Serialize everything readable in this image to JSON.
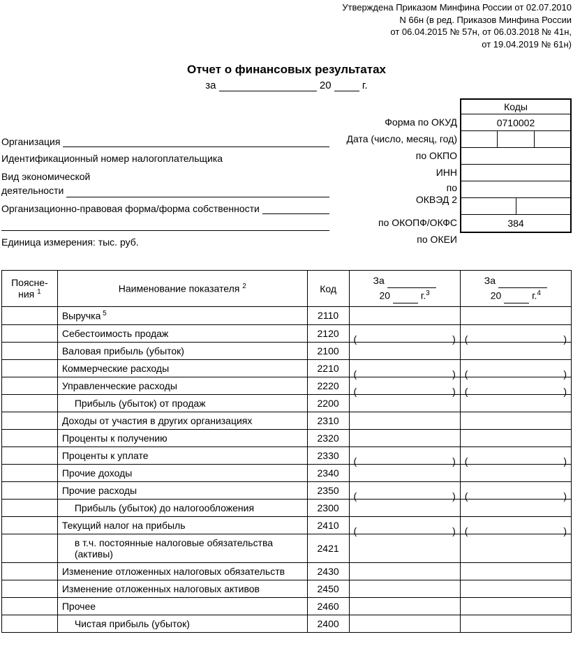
{
  "approval": {
    "line1": "Утверждена Приказом Минфина России от 02.07.2010",
    "line2": "N 66н (в ред. Приказов Минфина России",
    "line3": "от 06.04.2015 № 57н, от 06.03.2018 № 41н,",
    "line4": "от 19.04.2019 № 61н)"
  },
  "title": "Отчет о финансовых результатах",
  "period": {
    "za": "за",
    "twenty": "20",
    "g": "г."
  },
  "codes_header": "Коды",
  "labels": {
    "okud": "Форма по ОКУД",
    "date": "Дата (число, месяц, год)",
    "okpo": "по ОКПО",
    "inn": "ИНН",
    "po": "по",
    "okved": "ОКВЭД 2",
    "okopf": "по ОКОПФ/ОКФС",
    "okei": "по ОКЕИ"
  },
  "code_values": {
    "okud": "0710002",
    "okei": "384"
  },
  "left": {
    "org": "Организация",
    "inn": "Идентификационный номер налогоплательщика",
    "activity1": "Вид экономической",
    "activity2": "деятельности",
    "opf": "Организационно-правовая форма/форма собственности",
    "unit": "Единица измерения: тыс. руб."
  },
  "table": {
    "head": {
      "exp": "Поясне-\nния",
      "exp_sup": "1",
      "name": "Наименование показателя",
      "name_sup": "2",
      "code": "Код",
      "za": "За",
      "twenty": "20",
      "g3": "г.",
      "sup3": "3",
      "sup4": "4"
    },
    "rows": [
      {
        "name": "Выручка",
        "sup": "5",
        "code": "2110",
        "par": false,
        "indent": 0
      },
      {
        "name": "Себестоимость продаж",
        "code": "2120",
        "par": true,
        "indent": 0
      },
      {
        "name": "Валовая прибыль (убыток)",
        "code": "2100",
        "par": false,
        "indent": 0
      },
      {
        "name": "Коммерческие расходы",
        "code": "2210",
        "par": true,
        "indent": 0
      },
      {
        "name": "Управленческие расходы",
        "code": "2220",
        "par": true,
        "indent": 0
      },
      {
        "name": "Прибыль (убыток) от продаж",
        "code": "2200",
        "par": false,
        "indent": 1
      },
      {
        "name": "Доходы от участия в других организациях",
        "code": "2310",
        "par": false,
        "indent": 0
      },
      {
        "name": "Проценты к получению",
        "code": "2320",
        "par": false,
        "indent": 0
      },
      {
        "name": "Проценты к уплате",
        "code": "2330",
        "par": true,
        "indent": 0
      },
      {
        "name": "Прочие доходы",
        "code": "2340",
        "par": false,
        "indent": 0
      },
      {
        "name": "Прочие расходы",
        "code": "2350",
        "par": true,
        "indent": 0
      },
      {
        "name": "Прибыль (убыток) до налогообложения",
        "code": "2300",
        "par": false,
        "indent": 1
      },
      {
        "name": "Текущий налог на прибыль",
        "code": "2410",
        "par": true,
        "indent": 0
      },
      {
        "name": "в т.ч. постоянные налоговые обязательства (активы)",
        "code": "2421",
        "par": false,
        "indent": 1
      },
      {
        "name": "Изменение отложенных налоговых обязательств",
        "code": "2430",
        "par": false,
        "indent": 0
      },
      {
        "name": "Изменение отложенных налоговых активов",
        "code": "2450",
        "par": false,
        "indent": 0
      },
      {
        "name": "Прочее",
        "code": "2460",
        "par": false,
        "indent": 0
      },
      {
        "name": "Чистая прибыль (убыток)",
        "code": "2400",
        "par": false,
        "indent": 1
      }
    ]
  }
}
